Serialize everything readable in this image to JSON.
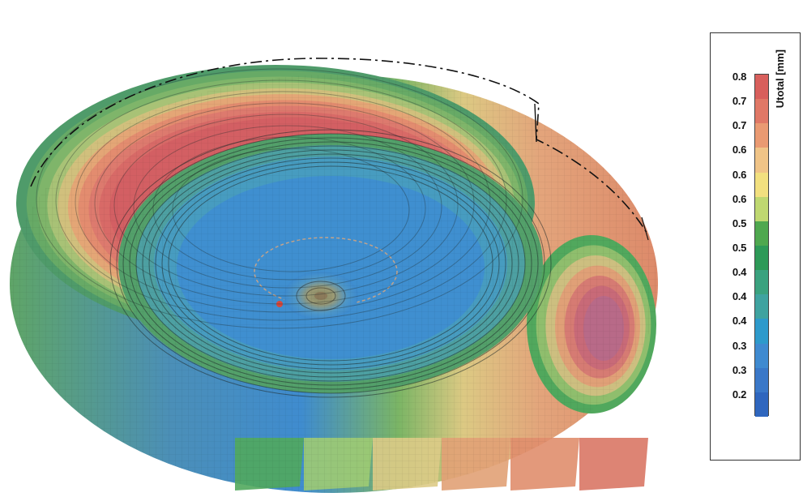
{
  "legend": {
    "unit_label": "Utotal [mm]",
    "ticks": [
      "0.8",
      "0.7",
      "0.7",
      "0.6",
      "0.6",
      "0.6",
      "0.5",
      "0.5",
      "0.4",
      "0.4",
      "0.4",
      "0.3",
      "0.3",
      "0.2"
    ],
    "colors": [
      "#d85f5c",
      "#e07866",
      "#ea9a72",
      "#f0c487",
      "#f2e07f",
      "#bfd871",
      "#4fa84f",
      "#2e9a58",
      "#3aa27f",
      "#3fa3a0",
      "#2e9acb",
      "#3f8ad0",
      "#3a78c8",
      "#2f66be"
    ]
  },
  "model": {
    "ring_colors": [
      "#4f9b6a",
      "#67aa66",
      "#7fb56a",
      "#a8c276",
      "#d1c07d",
      "#e4a676",
      "#e38c6f",
      "#dd7a6e",
      "#d86a67",
      "#d35f63"
    ],
    "center_color": "#3b87c9",
    "inner_ring_color": "#4c99c4",
    "blue_field": "#438fd0",
    "rim_colors": [
      "#51a85d",
      "#9fcb73",
      "#ddcb87",
      "#e1a176",
      "#e08e6d",
      "#d97765"
    ]
  }
}
